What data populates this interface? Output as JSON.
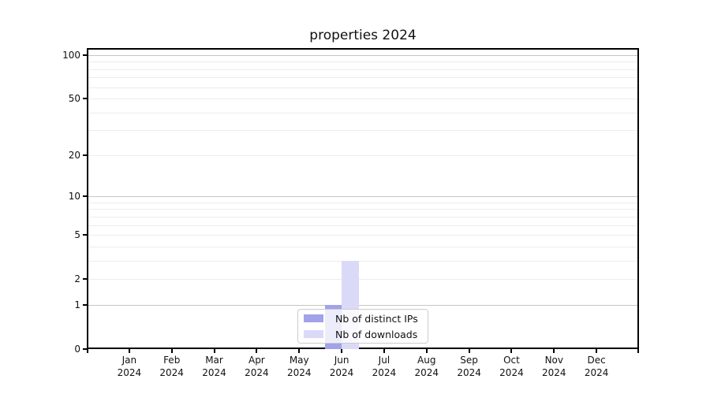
{
  "chart_data": {
    "type": "bar",
    "title": "properties 2024",
    "categories": [
      "Jan 2024",
      "Feb 2024",
      "Mar 2024",
      "Apr 2024",
      "May 2024",
      "Jun 2024",
      "Jul 2024",
      "Aug 2024",
      "Sep 2024",
      "Oct 2024",
      "Nov 2024",
      "Dec 2024"
    ],
    "series": [
      {
        "name": "Nb of distinct IPs",
        "color": "#a2a2e8",
        "values": [
          0,
          0,
          0,
          0,
          0,
          1,
          0,
          0,
          0,
          0,
          0,
          0
        ]
      },
      {
        "name": "Nb of downloads",
        "color": "#dadaf8",
        "values": [
          0,
          0,
          0,
          0,
          0,
          3,
          0,
          0,
          0,
          0,
          0,
          0
        ]
      }
    ],
    "y_axis": {
      "scale": "log1p",
      "ticks": [
        0,
        1,
        2,
        5,
        10,
        20,
        50,
        100
      ],
      "major_gridlines": [
        1,
        10,
        100
      ],
      "minor_gridlines": [
        2,
        3,
        4,
        5,
        6,
        7,
        8,
        9,
        20,
        30,
        40,
        50,
        60,
        70,
        80,
        90
      ],
      "range": [
        0,
        112
      ]
    },
    "xlabel": "",
    "ylabel": "",
    "grid": true,
    "legend_position": "lower center"
  },
  "colors": {
    "background": "#ffffff",
    "text": "#111111",
    "spine": "#000000",
    "major_grid": "#c6c6c6",
    "minor_grid": "#ececec",
    "legend_border": "#cccccc"
  }
}
